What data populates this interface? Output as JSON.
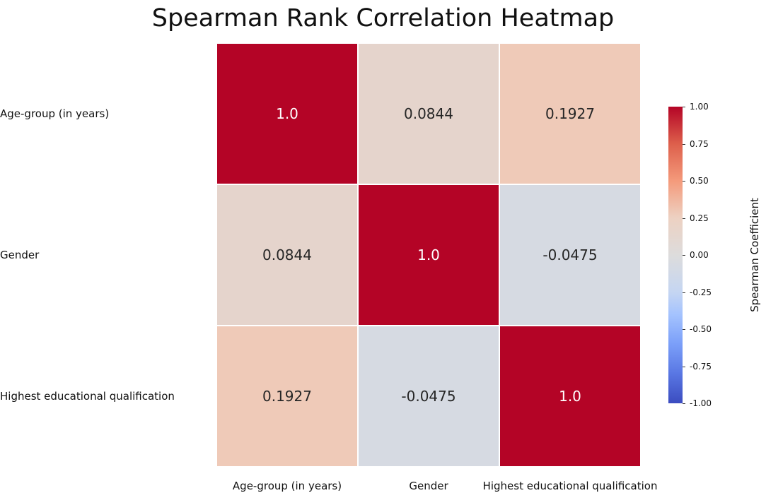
{
  "chart_data": {
    "type": "heatmap",
    "title": "Spearman Rank Correlation Heatmap",
    "rows": [
      "Age-group (in years)",
      "Gender",
      "Highest educational qualification"
    ],
    "columns": [
      "Age-group (in years)",
      "Gender",
      "Highest educational qualification"
    ],
    "values": [
      [
        1.0,
        0.0844,
        0.1927
      ],
      [
        0.0844,
        1.0,
        -0.0475
      ],
      [
        0.1927,
        -0.0475,
        1.0
      ]
    ],
    "cell_labels": [
      [
        "1.0",
        "0.0844",
        "0.1927"
      ],
      [
        "0.0844",
        "1.0",
        "-0.0475"
      ],
      [
        "0.1927",
        "-0.0475",
        "1.0"
      ]
    ],
    "colorbar": {
      "label": "Spearman Coefficient",
      "range": [
        -1.0,
        1.0
      ],
      "ticks": [
        "1.00",
        "0.75",
        "0.50",
        "0.25",
        "0.00",
        "-0.25",
        "-0.50",
        "-0.75",
        "-1.00"
      ],
      "colormap": "coolwarm"
    }
  }
}
